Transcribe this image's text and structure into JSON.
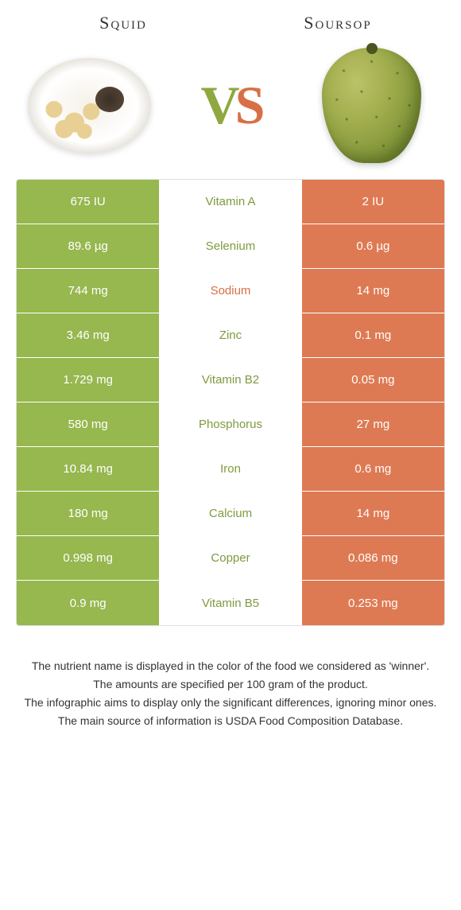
{
  "colors": {
    "left_bg": "#97b74f",
    "right_bg": "#de7a53",
    "left_text": "#7e9b3e",
    "right_text": "#d86f46"
  },
  "header": {
    "left": "Squid",
    "right": "Soursop"
  },
  "vs": {
    "v": "V",
    "s": "S"
  },
  "rows": [
    {
      "name": "Vitamin A",
      "left": "675 IU",
      "right": "2 IU",
      "winner": "left"
    },
    {
      "name": "Selenium",
      "left": "89.6 µg",
      "right": "0.6 µg",
      "winner": "left"
    },
    {
      "name": "Sodium",
      "left": "744 mg",
      "right": "14 mg",
      "winner": "right"
    },
    {
      "name": "Zinc",
      "left": "3.46 mg",
      "right": "0.1 mg",
      "winner": "left"
    },
    {
      "name": "Vitamin B2",
      "left": "1.729 mg",
      "right": "0.05 mg",
      "winner": "left"
    },
    {
      "name": "Phosphorus",
      "left": "580 mg",
      "right": "27 mg",
      "winner": "left"
    },
    {
      "name": "Iron",
      "left": "10.84 mg",
      "right": "0.6 mg",
      "winner": "left"
    },
    {
      "name": "Calcium",
      "left": "180 mg",
      "right": "14 mg",
      "winner": "left"
    },
    {
      "name": "Copper",
      "left": "0.998 mg",
      "right": "0.086 mg",
      "winner": "left"
    },
    {
      "name": "Vitamin B5",
      "left": "0.9 mg",
      "right": "0.253 mg",
      "winner": "left"
    }
  ],
  "footer": {
    "l1": "The nutrient name is displayed in the color of the food we considered as 'winner'.",
    "l2": "The amounts are specified per 100 gram of the product.",
    "l3": "The infographic aims to display only the significant differences, ignoring minor ones.",
    "l4": "The main source of information is USDA Food Composition Database."
  }
}
